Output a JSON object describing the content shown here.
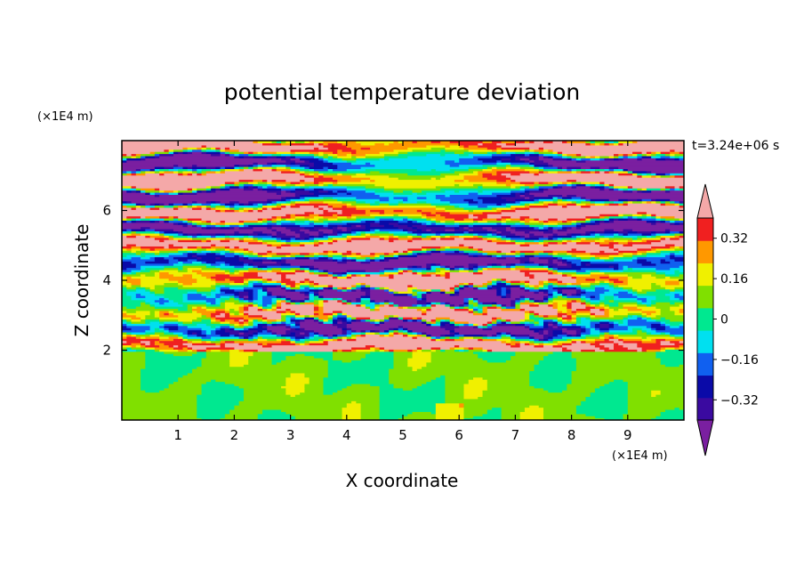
{
  "chart_data": {
    "type": "heatmap",
    "title": "potential temperature deviation",
    "xlabel": "X coordinate",
    "ylabel": "Z coordinate",
    "x_unit": "(×1E4 m)",
    "y_unit": "(×1E4 m)",
    "time_label": "t=3.24e+06 s",
    "xlim": [
      0,
      10
    ],
    "ylim": [
      0,
      8
    ],
    "x_ticks": [
      1,
      2,
      3,
      4,
      5,
      6,
      7,
      8,
      9
    ],
    "y_ticks": [
      2,
      4,
      6
    ],
    "x_tick_labels": [
      "1",
      "2",
      "3",
      "4",
      "5",
      "6",
      "7",
      "8",
      "9"
    ],
    "y_tick_labels": [
      "2",
      "4",
      "6"
    ],
    "colorbar": {
      "levels": [
        -0.4,
        -0.32,
        -0.24,
        -0.16,
        -0.08,
        0,
        0.08,
        0.16,
        0.24,
        0.32,
        0.4
      ],
      "labeled_levels": [
        0.32,
        0.16,
        0,
        -0.16,
        -0.32
      ],
      "labels": [
        "0.32",
        "0.16",
        "0",
        "−0.16",
        "−0.32"
      ],
      "colors": [
        "#7a1fa0",
        "#3a0aa0",
        "#0a0aa8",
        "#1060f0",
        "#00e0f0",
        "#00e890",
        "#80e000",
        "#f0f000",
        "#ff9800",
        "#f02020",
        "#f4a8a8"
      ],
      "extend": "both"
    },
    "stable_layer_height": 2.0
  }
}
